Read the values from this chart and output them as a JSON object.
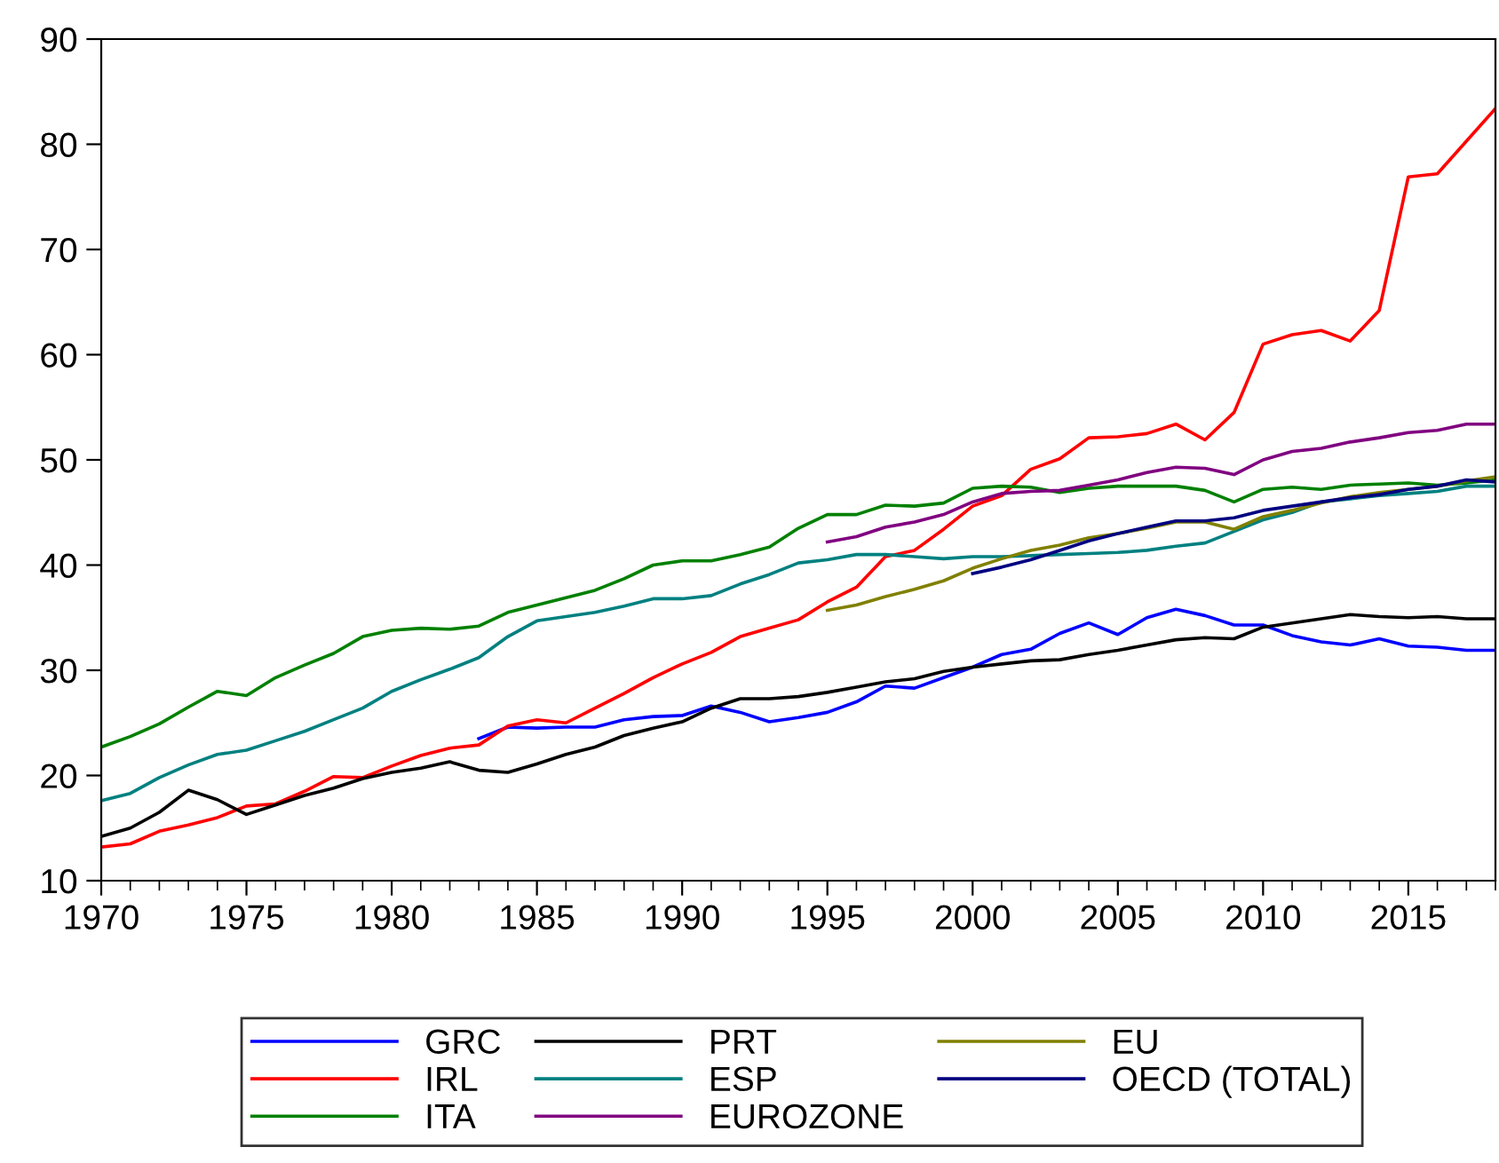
{
  "chart_data": {
    "type": "line",
    "xlim": [
      1970,
      2018
    ],
    "xticks": [
      1970,
      1975,
      1980,
      1985,
      1990,
      1995,
      2000,
      2005,
      2010,
      2015
    ],
    "ylim": [
      10,
      90
    ],
    "yticks": [
      10,
      20,
      30,
      40,
      50,
      60,
      70,
      80,
      90
    ],
    "grid": false,
    "legend": "bottom",
    "marker": "none",
    "line_style": "solid",
    "series": [
      {
        "name": "GRC",
        "color": "#0000ff",
        "x": [
          1983,
          1984,
          1985,
          1986,
          1987,
          1988,
          1989,
          1990,
          1991,
          1992,
          1993,
          1994,
          1995,
          1996,
          1997,
          1998,
          1999,
          2000,
          2001,
          2002,
          2003,
          2004,
          2005,
          2006,
          2007,
          2008,
          2009,
          2010,
          2011,
          2012,
          2013,
          2014,
          2015,
          2016,
          2017,
          2018
        ],
        "values": [
          23.5,
          24.6,
          24.5,
          24.6,
          24.6,
          25.3,
          25.6,
          25.7,
          26.6,
          26.0,
          25.1,
          25.5,
          26.0,
          27.0,
          28.5,
          28.3,
          29.3,
          30.3,
          31.5,
          32.0,
          33.5,
          34.5,
          33.4,
          35.0,
          35.8,
          35.2,
          34.3,
          34.3,
          33.3,
          32.7,
          32.4,
          33.0,
          32.3,
          32.2,
          31.9,
          31.9
        ]
      },
      {
        "name": "IRL",
        "color": "#ff0000",
        "x": [
          1970,
          1971,
          1972,
          1973,
          1974,
          1975,
          1976,
          1977,
          1978,
          1979,
          1980,
          1981,
          1982,
          1983,
          1984,
          1985,
          1986,
          1987,
          1988,
          1989,
          1990,
          1991,
          1992,
          1993,
          1994,
          1995,
          1996,
          1997,
          1998,
          1999,
          2000,
          2001,
          2002,
          2003,
          2004,
          2005,
          2006,
          2007,
          2008,
          2009,
          2010,
          2011,
          2012,
          2013,
          2014,
          2015,
          2016,
          2017,
          2018
        ],
        "values": [
          13.2,
          13.5,
          14.7,
          15.3,
          16.0,
          17.1,
          17.3,
          18.5,
          19.9,
          19.8,
          20.9,
          21.9,
          22.6,
          22.9,
          24.7,
          25.3,
          25.0,
          26.4,
          27.8,
          29.3,
          30.6,
          31.7,
          33.2,
          34.0,
          34.8,
          36.5,
          37.9,
          40.8,
          41.4,
          43.4,
          45.6,
          46.6,
          49.1,
          50.1,
          52.1,
          52.2,
          52.5,
          53.4,
          51.9,
          54.5,
          61.0,
          61.9,
          62.3,
          61.3,
          64.2,
          76.9,
          77.2,
          80.3,
          83.4
        ]
      },
      {
        "name": "ITA",
        "color": "#008000",
        "x": [
          1970,
          1971,
          1972,
          1973,
          1974,
          1975,
          1976,
          1977,
          1978,
          1979,
          1980,
          1981,
          1982,
          1983,
          1984,
          1985,
          1986,
          1987,
          1988,
          1989,
          1990,
          1991,
          1992,
          1993,
          1994,
          1995,
          1996,
          1997,
          1998,
          1999,
          2000,
          2001,
          2002,
          2003,
          2004,
          2005,
          2006,
          2007,
          2008,
          2009,
          2010,
          2011,
          2012,
          2013,
          2014,
          2015,
          2016,
          2017,
          2018
        ],
        "values": [
          22.7,
          23.7,
          24.9,
          26.5,
          28.0,
          27.6,
          29.3,
          30.5,
          31.6,
          33.2,
          33.8,
          34.0,
          33.9,
          34.2,
          35.5,
          36.2,
          36.9,
          37.6,
          38.7,
          40.0,
          40.4,
          40.4,
          41.0,
          41.7,
          43.5,
          44.8,
          44.8,
          45.7,
          45.6,
          45.9,
          47.3,
          47.5,
          47.4,
          46.9,
          47.3,
          47.5,
          47.5,
          47.5,
          47.1,
          46.0,
          47.2,
          47.4,
          47.2,
          47.6,
          47.7,
          47.8,
          47.6,
          47.8,
          48.1
        ]
      },
      {
        "name": "PRT",
        "color": "#000000",
        "x": [
          1970,
          1971,
          1972,
          1973,
          1974,
          1975,
          1976,
          1977,
          1978,
          1979,
          1980,
          1981,
          1982,
          1983,
          1984,
          1985,
          1986,
          1987,
          1988,
          1989,
          1990,
          1991,
          1992,
          1993,
          1994,
          1995,
          1996,
          1997,
          1998,
          1999,
          2000,
          2001,
          2002,
          2003,
          2004,
          2005,
          2006,
          2007,
          2008,
          2009,
          2010,
          2011,
          2012,
          2013,
          2014,
          2015,
          2016,
          2017,
          2018
        ],
        "values": [
          14.2,
          15.0,
          16.5,
          18.6,
          17.7,
          16.3,
          17.2,
          18.1,
          18.8,
          19.7,
          20.3,
          20.7,
          21.3,
          20.5,
          20.3,
          21.1,
          22.0,
          22.7,
          23.8,
          24.5,
          25.1,
          26.4,
          27.3,
          27.3,
          27.5,
          27.9,
          28.4,
          28.9,
          29.2,
          29.9,
          30.3,
          30.6,
          30.9,
          31.0,
          31.5,
          31.9,
          32.4,
          32.9,
          33.1,
          33.0,
          34.1,
          34.5,
          34.9,
          35.3,
          35.1,
          35.0,
          35.1,
          34.9,
          34.9
        ]
      },
      {
        "name": "ESP",
        "color": "#008080",
        "x": [
          1970,
          1971,
          1972,
          1973,
          1974,
          1975,
          1976,
          1977,
          1978,
          1979,
          1980,
          1981,
          1982,
          1983,
          1984,
          1985,
          1986,
          1987,
          1988,
          1989,
          1990,
          1991,
          1992,
          1993,
          1994,
          1995,
          1996,
          1997,
          1998,
          1999,
          2000,
          2001,
          2002,
          2003,
          2004,
          2005,
          2006,
          2007,
          2008,
          2009,
          2010,
          2011,
          2012,
          2013,
          2014,
          2015,
          2016,
          2017,
          2018
        ],
        "values": [
          17.6,
          18.3,
          19.8,
          21.0,
          22.0,
          22.4,
          23.3,
          24.2,
          25.3,
          26.4,
          28.0,
          29.1,
          30.1,
          31.2,
          33.2,
          34.7,
          35.1,
          35.5,
          36.1,
          36.8,
          36.8,
          37.1,
          38.2,
          39.1,
          40.2,
          40.5,
          41.0,
          41.0,
          40.8,
          40.6,
          40.8,
          40.8,
          40.9,
          41.0,
          41.1,
          41.2,
          41.4,
          41.8,
          42.1,
          43.2,
          44.3,
          45.0,
          46.0,
          46.3,
          46.6,
          46.8,
          47.0,
          47.5,
          47.5
        ]
      },
      {
        "name": "EUROZONE",
        "color": "#800080",
        "x": [
          1995,
          1996,
          1997,
          1998,
          1999,
          2000,
          2001,
          2002,
          2003,
          2004,
          2005,
          2006,
          2007,
          2008,
          2009,
          2010,
          2011,
          2012,
          2013,
          2014,
          2015,
          2016,
          2017,
          2018
        ],
        "values": [
          42.2,
          42.7,
          43.6,
          44.1,
          44.8,
          46.0,
          46.8,
          47.0,
          47.1,
          47.6,
          48.1,
          48.8,
          49.3,
          49.2,
          48.6,
          50.0,
          50.8,
          51.1,
          51.7,
          52.1,
          52.6,
          52.8,
          53.4,
          53.4
        ]
      },
      {
        "name": "EU",
        "color": "#808000",
        "x": [
          1995,
          1996,
          1997,
          1998,
          1999,
          2000,
          2001,
          2002,
          2003,
          2004,
          2005,
          2006,
          2007,
          2008,
          2009,
          2010,
          2011,
          2012,
          2013,
          2014,
          2015,
          2016,
          2017,
          2018
        ],
        "values": [
          35.7,
          36.2,
          37.0,
          37.7,
          38.5,
          39.7,
          40.6,
          41.4,
          41.9,
          42.6,
          43.0,
          43.5,
          44.1,
          44.1,
          43.4,
          44.6,
          45.2,
          45.9,
          46.5,
          46.9,
          47.2,
          47.5,
          48.0,
          48.4
        ]
      },
      {
        "name": "OECD (TOTAL)",
        "color": "#000080",
        "x": [
          2000,
          2001,
          2002,
          2003,
          2004,
          2005,
          2006,
          2007,
          2008,
          2009,
          2010,
          2011,
          2012,
          2013,
          2014,
          2015,
          2016,
          2017,
          2018
        ],
        "values": [
          39.2,
          39.8,
          40.5,
          41.4,
          42.3,
          43.0,
          43.6,
          44.2,
          44.2,
          44.5,
          45.2,
          45.6,
          46.0,
          46.4,
          46.7,
          47.2,
          47.5,
          48.1,
          47.9
        ]
      }
    ]
  }
}
